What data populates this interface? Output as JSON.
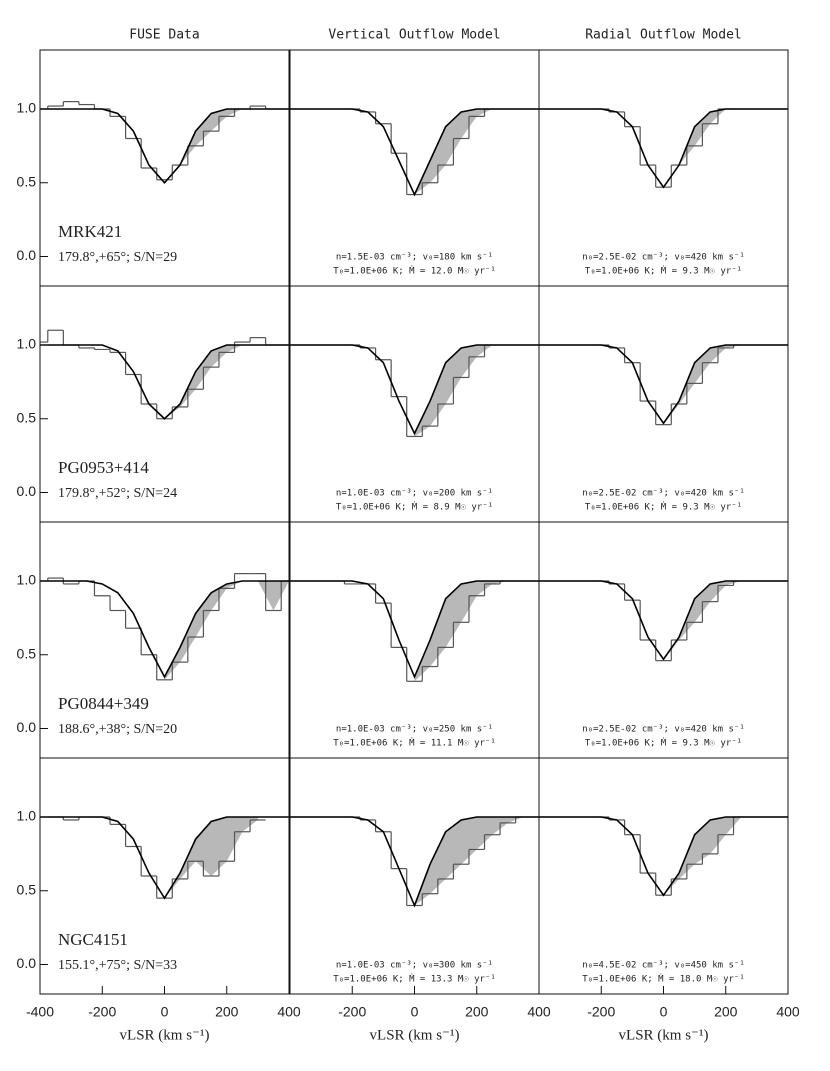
{
  "chart_data": [
    {
      "type": "line",
      "title": "FUSE Data",
      "xlim": [
        -400,
        400
      ],
      "ylim": [
        -0.2,
        1.4
      ],
      "yticks": [
        {
          "value": 0,
          "label": "0.0"
        },
        0.5,
        {
          "value": 1,
          "label": "1.0"
        }
      ],
      "x": [
        -400,
        -350,
        -300,
        -250,
        -200,
        -150,
        -100,
        -50,
        0,
        50,
        100,
        150,
        200,
        250,
        300,
        350,
        400
      ],
      "series": [
        {
          "color": "#555555",
          "style": "step",
          "values": [
            1.0,
            1.02,
            1.05,
            1.03,
            1.0,
            0.95,
            0.8,
            0.6,
            0.52,
            0.62,
            0.75,
            0.85,
            0.95,
            1.0,
            1.02,
            1.0,
            1.0
          ]
        },
        {
          "color": "#000000",
          "style": "line",
          "values": [
            1,
            1,
            1,
            1,
            1,
            0.97,
            0.85,
            0.62,
            0.5,
            0.62,
            0.85,
            0.97,
            1,
            1,
            1,
            1,
            1
          ]
        }
      ],
      "shade": "#b8b8b8",
      "annotations": [
        "MRK421",
        "179.8°,+65°; S/N=29"
      ]
    },
    {
      "type": "line",
      "title": "Vertical Outflow Model",
      "xlim": [
        -400,
        400
      ],
      "ylim": [
        -0.2,
        1.4
      ],
      "x": [
        -400,
        -350,
        -300,
        -250,
        -200,
        -150,
        -100,
        -50,
        0,
        50,
        100,
        150,
        200,
        250,
        300,
        350,
        400
      ],
      "series": [
        {
          "color": "#555555",
          "style": "step",
          "values": [
            1,
            1,
            1,
            1,
            1,
            0.98,
            0.9,
            0.7,
            0.42,
            0.5,
            0.62,
            0.8,
            0.95,
            1,
            1,
            1,
            1
          ]
        },
        {
          "color": "#000000",
          "style": "line",
          "values": [
            1,
            1,
            1,
            1,
            1,
            0.98,
            0.88,
            0.65,
            0.42,
            0.65,
            0.88,
            0.98,
            1,
            1,
            1,
            1,
            1
          ]
        }
      ],
      "shade": "#b8b8b8",
      "annotations": [
        "n=1.5E-03 cm⁻³; v₀=180 km s⁻¹",
        "T₀=1.0E+06 K; Ṁ = 12.0 M☉ yr⁻¹"
      ]
    },
    {
      "type": "line",
      "title": "Radial Outflow Model",
      "xlim": [
        -400,
        400
      ],
      "ylim": [
        -0.2,
        1.4
      ],
      "x": [
        -400,
        -350,
        -300,
        -250,
        -200,
        -150,
        -100,
        -50,
        0,
        50,
        100,
        150,
        200,
        250,
        300,
        350,
        400
      ],
      "series": [
        {
          "color": "#555555",
          "style": "step",
          "values": [
            1,
            1,
            1,
            1,
            1,
            0.98,
            0.88,
            0.62,
            0.47,
            0.62,
            0.75,
            0.9,
            1,
            1,
            1,
            1,
            1
          ]
        },
        {
          "color": "#000000",
          "style": "line",
          "values": [
            1,
            1,
            1,
            1,
            1,
            0.98,
            0.88,
            0.62,
            0.47,
            0.62,
            0.88,
            0.98,
            1,
            1,
            1,
            1,
            1
          ]
        }
      ],
      "shade": "#b8b8b8",
      "annotations": [
        "n₀=2.5E-02 cm⁻³; v₀=420 km s⁻¹",
        "T₀=1.0E+06 K; Ṁ = 9.3 M☉ yr⁻¹"
      ]
    },
    {
      "type": "line",
      "xlim": [
        -400,
        400
      ],
      "ylim": [
        -0.2,
        1.4
      ],
      "yticks": [
        {
          "value": 0,
          "label": "0.0"
        },
        0.5,
        {
          "value": 1,
          "label": "1.0"
        }
      ],
      "x": [
        -400,
        -350,
        -300,
        -250,
        -200,
        -150,
        -100,
        -50,
        0,
        50,
        100,
        150,
        200,
        250,
        300,
        350,
        400
      ],
      "series": [
        {
          "color": "#555555",
          "style": "step",
          "values": [
            1.02,
            1.1,
            1.0,
            0.98,
            0.97,
            0.95,
            0.8,
            0.6,
            0.5,
            0.58,
            0.7,
            0.85,
            0.95,
            1.02,
            1.05,
            1.0,
            1.0
          ]
        },
        {
          "color": "#000000",
          "style": "line",
          "values": [
            1,
            1,
            1,
            1,
            1,
            0.96,
            0.82,
            0.6,
            0.5,
            0.6,
            0.82,
            0.96,
            1,
            1,
            1,
            1,
            1
          ]
        }
      ],
      "shade": "#b8b8b8",
      "annotations": [
        "PG0953+414",
        "179.8°,+52°; S/N=24"
      ]
    },
    {
      "type": "line",
      "xlim": [
        -400,
        400
      ],
      "ylim": [
        -0.2,
        1.4
      ],
      "x": [
        -400,
        -350,
        -300,
        -250,
        -200,
        -150,
        -100,
        -50,
        0,
        50,
        100,
        150,
        200,
        250,
        300,
        350,
        400
      ],
      "series": [
        {
          "color": "#555555",
          "style": "step",
          "values": [
            1,
            1,
            1,
            1,
            1,
            0.98,
            0.9,
            0.65,
            0.38,
            0.45,
            0.6,
            0.78,
            0.92,
            1,
            1,
            1,
            1
          ]
        },
        {
          "color": "#000000",
          "style": "line",
          "values": [
            1,
            1,
            1,
            1,
            1,
            0.98,
            0.88,
            0.62,
            0.4,
            0.62,
            0.88,
            0.98,
            1,
            1,
            1,
            1,
            1
          ]
        }
      ],
      "shade": "#b8b8b8",
      "annotations": [
        "n=1.0E-03 cm⁻³; v₀=200 km s⁻¹",
        "T₀=1.0E+06 K; Ṁ = 8.9 M☉ yr⁻¹"
      ]
    },
    {
      "type": "line",
      "xlim": [
        -400,
        400
      ],
      "ylim": [
        -0.2,
        1.4
      ],
      "x": [
        -400,
        -350,
        -300,
        -250,
        -200,
        -150,
        -100,
        -50,
        0,
        50,
        100,
        150,
        200,
        250,
        300,
        350,
        400
      ],
      "series": [
        {
          "color": "#555555",
          "style": "step",
          "values": [
            1,
            1,
            1,
            1,
            1,
            0.98,
            0.88,
            0.62,
            0.46,
            0.6,
            0.74,
            0.88,
            0.98,
            1,
            1,
            1,
            1
          ]
        },
        {
          "color": "#000000",
          "style": "line",
          "values": [
            1,
            1,
            1,
            1,
            1,
            0.98,
            0.88,
            0.62,
            0.47,
            0.62,
            0.88,
            0.98,
            1,
            1,
            1,
            1,
            1
          ]
        }
      ],
      "shade": "#b8b8b8",
      "annotations": [
        "n₀=2.5E-02 cm⁻³; v₀=420 km s⁻¹",
        "T₀=1.0E+06 K; Ṁ = 9.3 M☉ yr⁻¹"
      ]
    },
    {
      "type": "line",
      "xlim": [
        -400,
        400
      ],
      "ylim": [
        -0.2,
        1.4
      ],
      "yticks": [
        {
          "value": 0,
          "label": "0.0"
        },
        0.5,
        {
          "value": 1,
          "label": "1.0"
        }
      ],
      "x": [
        -400,
        -350,
        -300,
        -250,
        -200,
        -150,
        -100,
        -50,
        0,
        50,
        100,
        150,
        200,
        250,
        300,
        350,
        400
      ],
      "series": [
        {
          "color": "#555555",
          "style": "step",
          "values": [
            1.0,
            1.02,
            0.98,
            1.0,
            0.9,
            0.8,
            0.68,
            0.5,
            0.33,
            0.45,
            0.62,
            0.8,
            0.95,
            1.05,
            1.05,
            0.8,
            1.0
          ]
        },
        {
          "color": "#000000",
          "style": "line",
          "values": [
            1,
            1,
            1,
            1,
            0.98,
            0.92,
            0.78,
            0.55,
            0.35,
            0.55,
            0.78,
            0.92,
            0.98,
            1,
            1,
            1,
            1
          ]
        }
      ],
      "shade": "#b8b8b8",
      "annotations": [
        "PG0844+349",
        "188.6°,+38°; S/N=20"
      ]
    },
    {
      "type": "line",
      "xlim": [
        -400,
        400
      ],
      "ylim": [
        -0.2,
        1.4
      ],
      "x": [
        -400,
        -350,
        -300,
        -250,
        -200,
        -150,
        -100,
        -50,
        0,
        50,
        100,
        150,
        200,
        250,
        300,
        350,
        400
      ],
      "series": [
        {
          "color": "#555555",
          "style": "step",
          "values": [
            1,
            1,
            1,
            1,
            0.98,
            0.98,
            0.85,
            0.55,
            0.32,
            0.42,
            0.55,
            0.72,
            0.9,
            0.98,
            1,
            1,
            1
          ]
        },
        {
          "color": "#000000",
          "style": "line",
          "values": [
            1,
            1,
            1,
            1,
            1,
            0.98,
            0.88,
            0.6,
            0.35,
            0.6,
            0.88,
            0.98,
            1,
            1,
            1,
            1,
            1
          ]
        }
      ],
      "shade": "#b8b8b8",
      "annotations": [
        "n=1.0E-03 cm⁻³; v₀=250 km s⁻¹",
        "T₀=1.0E+06 K; Ṁ = 11.1 M☉ yr⁻¹"
      ]
    },
    {
      "type": "line",
      "xlim": [
        -400,
        400
      ],
      "ylim": [
        -0.2,
        1.4
      ],
      "x": [
        -400,
        -350,
        -300,
        -250,
        -200,
        -150,
        -100,
        -50,
        0,
        50,
        100,
        150,
        200,
        250,
        300,
        350,
        400
      ],
      "series": [
        {
          "color": "#555555",
          "style": "step",
          "values": [
            1,
            1,
            1,
            1,
            1,
            0.98,
            0.87,
            0.6,
            0.46,
            0.6,
            0.72,
            0.86,
            0.97,
            1,
            1,
            1,
            1
          ]
        },
        {
          "color": "#000000",
          "style": "line",
          "values": [
            1,
            1,
            1,
            1,
            1,
            0.98,
            0.88,
            0.62,
            0.47,
            0.62,
            0.88,
            0.98,
            1,
            1,
            1,
            1,
            1
          ]
        }
      ],
      "shade": "#b8b8b8",
      "annotations": [
        "n₀=2.5E-02 cm⁻³; v₀=420 km s⁻¹",
        "T₀=1.0E+06 K; Ṁ = 9.3 M☉ yr⁻¹"
      ]
    },
    {
      "type": "line",
      "xlim": [
        -400,
        400
      ],
      "ylim": [
        -0.2,
        1.4
      ],
      "yticks": [
        {
          "value": 0,
          "label": "0.0"
        },
        0.5,
        {
          "value": 1,
          "label": "1.0"
        }
      ],
      "xticks": [
        -400,
        -200,
        0,
        200,
        400
      ],
      "xlabel": "vLSR (km s⁻¹)",
      "x": [
        -400,
        -350,
        -300,
        -250,
        -200,
        -150,
        -100,
        -50,
        0,
        50,
        100,
        150,
        200,
        250,
        300,
        350,
        400
      ],
      "series": [
        {
          "color": "#555555",
          "style": "step",
          "values": [
            1,
            1,
            0.98,
            1.0,
            1.0,
            0.95,
            0.8,
            0.6,
            0.45,
            0.58,
            0.7,
            0.6,
            0.7,
            0.9,
            0.98,
            null,
            null
          ]
        },
        {
          "color": "#000000",
          "style": "line",
          "values": [
            1,
            1,
            1,
            1,
            1,
            0.97,
            0.85,
            0.62,
            0.45,
            0.62,
            0.85,
            0.97,
            1,
            1,
            1,
            1,
            1
          ]
        }
      ],
      "shade": "#b8b8b8",
      "annotations": [
        "NGC4151",
        "155.1°,+75°; S/N=33"
      ]
    },
    {
      "type": "line",
      "xlim": [
        -400,
        400
      ],
      "ylim": [
        -0.2,
        1.4
      ],
      "xticks": [
        -200,
        0,
        200,
        400
      ],
      "xlabel": "vLSR (km s⁻¹)",
      "x": [
        -400,
        -350,
        -300,
        -250,
        -200,
        -150,
        -100,
        -50,
        0,
        50,
        100,
        150,
        200,
        250,
        300,
        350,
        400
      ],
      "series": [
        {
          "color": "#555555",
          "style": "step",
          "values": [
            1,
            1,
            1,
            1,
            1,
            0.98,
            0.9,
            0.65,
            0.4,
            0.48,
            0.58,
            0.68,
            0.78,
            0.88,
            0.96,
            1,
            1
          ]
        },
        {
          "color": "#000000",
          "style": "line",
          "values": [
            1,
            1,
            1,
            1,
            1,
            0.98,
            0.9,
            0.65,
            0.4,
            0.68,
            0.9,
            0.98,
            1,
            1,
            1,
            1,
            1
          ]
        }
      ],
      "shade": "#b8b8b8",
      "annotations": [
        "n=1.0E-03 cm⁻³; v₀=300 km s⁻¹",
        "T₀=1.0E+06 K; Ṁ = 13.3 M☉ yr⁻¹"
      ]
    },
    {
      "type": "line",
      "xlim": [
        -400,
        400
      ],
      "ylim": [
        -0.2,
        1.4
      ],
      "xticks": [
        -200,
        0,
        200,
        400
      ],
      "xlabel": "vLSR (km s⁻¹)",
      "x": [
        -400,
        -350,
        -300,
        -250,
        -200,
        -150,
        -100,
        -50,
        0,
        50,
        100,
        150,
        200,
        250,
        300,
        350,
        400
      ],
      "series": [
        {
          "color": "#555555",
          "style": "step",
          "values": [
            1,
            1,
            1,
            1,
            1,
            0.98,
            0.88,
            0.62,
            0.47,
            0.58,
            0.68,
            0.75,
            0.88,
            1,
            1,
            1,
            1
          ]
        },
        {
          "color": "#000000",
          "style": "line",
          "values": [
            1,
            1,
            1,
            1,
            1,
            0.98,
            0.88,
            0.62,
            0.47,
            0.62,
            0.88,
            0.98,
            1,
            1,
            1,
            1,
            1
          ]
        }
      ],
      "shade": "#b8b8b8",
      "annotations": [
        "n₀=4.5E-02 cm⁻³; v₀=450 km s⁻¹",
        "T₀=1.0E+06 K; Ṁ = 18.0 M☉ yr⁻¹"
      ]
    }
  ]
}
